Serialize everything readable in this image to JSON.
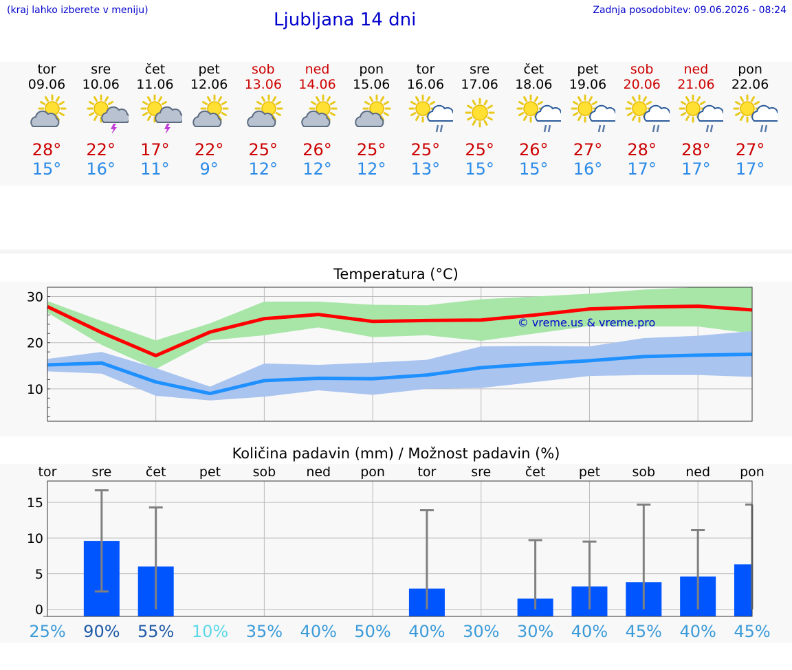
{
  "header": {
    "note": "(kraj lahko izberete v meniju)",
    "title": "Ljubljana 14 dni",
    "updated": "Zadnja posodobitev: 09.06.2026 - 08:24"
  },
  "colors": {
    "max_temp": "#cc0000",
    "min_temp": "#2a8ae8",
    "max_band": "#a8e6a8",
    "min_band": "#aac4f0",
    "max_line": "#ff0000",
    "min_line": "#1e90ff",
    "bar": "#0055ff",
    "error_bar": "#808080"
  },
  "days": [
    {
      "name": "tor",
      "date": "09.06",
      "weekend": false,
      "icon": "partly-cloudy-icon",
      "tmax": "28°",
      "tmin": "15°"
    },
    {
      "name": "sre",
      "date": "10.06",
      "weekend": false,
      "icon": "sun-storm-icon",
      "tmax": "22°",
      "tmin": "16°"
    },
    {
      "name": "čet",
      "date": "11.06",
      "weekend": false,
      "icon": "sun-storm-icon",
      "tmax": "17°",
      "tmin": "11°"
    },
    {
      "name": "pet",
      "date": "12.06",
      "weekend": false,
      "icon": "partly-cloudy-icon",
      "tmax": "22°",
      "tmin": "9°"
    },
    {
      "name": "sob",
      "date": "13.06",
      "weekend": true,
      "icon": "partly-cloudy-icon",
      "tmax": "25°",
      "tmin": "12°"
    },
    {
      "name": "ned",
      "date": "14.06",
      "weekend": true,
      "icon": "partly-cloudy-icon",
      "tmax": "26°",
      "tmin": "12°"
    },
    {
      "name": "pon",
      "date": "15.06",
      "weekend": false,
      "icon": "partly-cloudy-icon",
      "tmax": "25°",
      "tmin": "12°"
    },
    {
      "name": "tor",
      "date": "16.06",
      "weekend": false,
      "icon": "sun-rain-icon",
      "tmax": "25°",
      "tmin": "13°"
    },
    {
      "name": "sre",
      "date": "17.06",
      "weekend": false,
      "icon": "sun-icon",
      "tmax": "25°",
      "tmin": "15°"
    },
    {
      "name": "čet",
      "date": "18.06",
      "weekend": false,
      "icon": "sun-rain-icon",
      "tmax": "26°",
      "tmin": "15°"
    },
    {
      "name": "pet",
      "date": "19.06",
      "weekend": false,
      "icon": "sun-rain-icon",
      "tmax": "27°",
      "tmin": "16°"
    },
    {
      "name": "sob",
      "date": "20.06",
      "weekend": true,
      "icon": "sun-rain-icon",
      "tmax": "28°",
      "tmin": "17°"
    },
    {
      "name": "ned",
      "date": "21.06",
      "weekend": true,
      "icon": "sun-rain-icon",
      "tmax": "28°",
      "tmin": "17°"
    },
    {
      "name": "pon",
      "date": "22.06",
      "weekend": false,
      "icon": "sun-rain-icon",
      "tmax": "27°",
      "tmin": "17°"
    }
  ],
  "chart_data": [
    {
      "type": "line",
      "title": "Temperatura (°C)",
      "watermark": "© vreme.us & vreme.pro",
      "x": [
        "09.06",
        "10.06",
        "11.06",
        "12.06",
        "13.06",
        "14.06",
        "15.06",
        "16.06",
        "17.06",
        "18.06",
        "19.06",
        "20.06",
        "21.06",
        "22.06"
      ],
      "ylim": [
        3,
        32
      ],
      "yticks": [
        10,
        20,
        30
      ],
      "grid": true,
      "series": [
        {
          "values": [
            27.8,
            22.2,
            17.2,
            22.3,
            25.2,
            26.1,
            24.6,
            24.8,
            24.9,
            26.0,
            27.3,
            27.7,
            27.9,
            27.1
          ],
          "band_low": [
            26.5,
            19.5,
            14.3,
            20.5,
            21.6,
            23.3,
            21.2,
            21.6,
            20.4,
            22.0,
            23.6,
            23.5,
            23.5,
            22.0
          ],
          "band_high": [
            29.0,
            24.7,
            20.5,
            24.2,
            28.9,
            28.9,
            28.2,
            28.1,
            29.4,
            30.0,
            30.6,
            31.5,
            32.0,
            32.0
          ]
        },
        {
          "values": [
            15.2,
            15.6,
            11.5,
            9.0,
            11.8,
            12.3,
            12.2,
            13.0,
            14.6,
            15.4,
            16.1,
            17.0,
            17.3,
            17.5
          ],
          "band_low": [
            13.8,
            13.3,
            8.5,
            7.5,
            8.3,
            9.7,
            8.7,
            10.0,
            10.2,
            11.5,
            12.8,
            13.0,
            13.0,
            12.6
          ],
          "band_high": [
            16.5,
            18.0,
            14.5,
            10.5,
            15.5,
            15.2,
            15.7,
            16.3,
            19.2,
            19.3,
            19.2,
            21.0,
            21.5,
            22.5
          ]
        }
      ]
    },
    {
      "type": "bar",
      "title": "Količina padavin (mm) / Možnost padavin (%)",
      "categories": [
        "tor",
        "sre",
        "čet",
        "pet",
        "sob",
        "ned",
        "pon",
        "tor",
        "sre",
        "čet",
        "pet",
        "sob",
        "ned",
        "pon"
      ],
      "ylim": [
        -1,
        18
      ],
      "yticks": [
        0,
        5,
        10,
        15
      ],
      "grid": true,
      "values": [
        0,
        9.6,
        6.0,
        0,
        0,
        0,
        0,
        2.9,
        0,
        1.5,
        3.2,
        3.8,
        4.6,
        6.3
      ],
      "error_low": [
        0,
        2.5,
        0,
        0,
        0,
        0,
        0,
        0,
        0,
        0,
        0,
        0,
        0,
        0
      ],
      "error_high": [
        0,
        16.7,
        14.3,
        0,
        0,
        0,
        0,
        13.9,
        0,
        9.7,
        9.5,
        14.7,
        11.1,
        14.7
      ],
      "probability": [
        "25%",
        "90%",
        "55%",
        "10%",
        "35%",
        "40%",
        "50%",
        "40%",
        "30%",
        "30%",
        "40%",
        "45%",
        "40%",
        "45%"
      ],
      "probability_colors": [
        "#3a9ad8",
        "#1e5aa8",
        "#1e5aa8",
        "#5bd8e8",
        "#3a9ad8",
        "#3a9ad8",
        "#3a9ad8",
        "#3a9ad8",
        "#3a9ad8",
        "#3a9ad8",
        "#3a9ad8",
        "#3a9ad8",
        "#3a9ad8",
        "#3a9ad8"
      ]
    }
  ]
}
